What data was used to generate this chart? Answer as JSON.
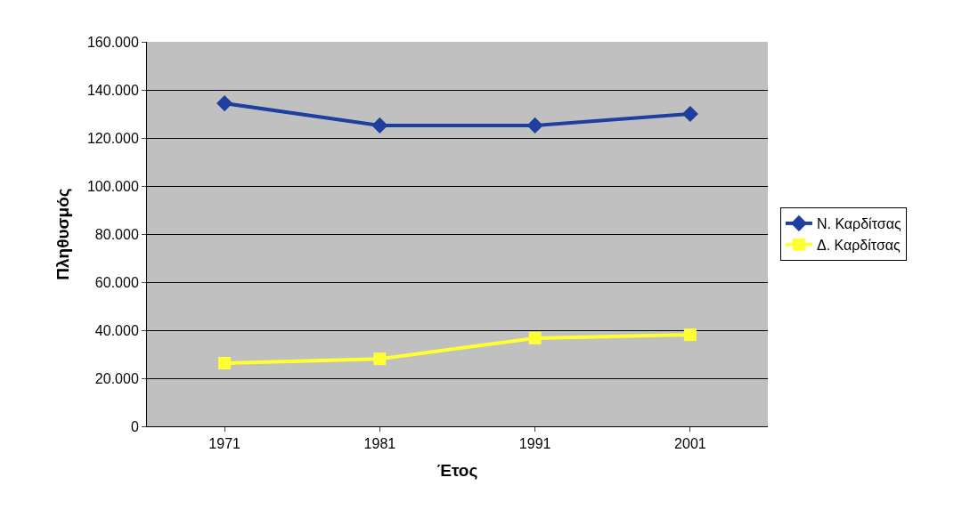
{
  "chart_data": {
    "type": "line",
    "xlabel": "Έτος",
    "ylabel": "Πληθυσμός",
    "categories": [
      "1971",
      "1981",
      "1991",
      "2001"
    ],
    "series": [
      {
        "name": "Ν. Καρδίτσας",
        "color": "#1f3f9f",
        "marker": "diamond",
        "values": [
          134400,
          125200,
          125200,
          130000
        ]
      },
      {
        "name": "Δ. Καρδίτσας",
        "color": "#ffff33",
        "marker": "square",
        "values": [
          26300,
          28100,
          36700,
          38100
        ]
      }
    ],
    "ylim": [
      0,
      160000
    ],
    "yticks": [
      0,
      {
        "value": 20000,
        "label": "20.000"
      },
      {
        "value": 40000,
        "label": "40.000"
      },
      {
        "value": 60000,
        "label": "60.000"
      },
      {
        "value": 80000,
        "label": "80.000"
      },
      {
        "value": 100000,
        "label": "100.000"
      },
      {
        "value": 120000,
        "label": "120.000"
      },
      {
        "value": 140000,
        "label": "140.000"
      },
      {
        "value": 160000,
        "label": "160.000"
      }
    ],
    "grid": "y",
    "legend": "right"
  }
}
